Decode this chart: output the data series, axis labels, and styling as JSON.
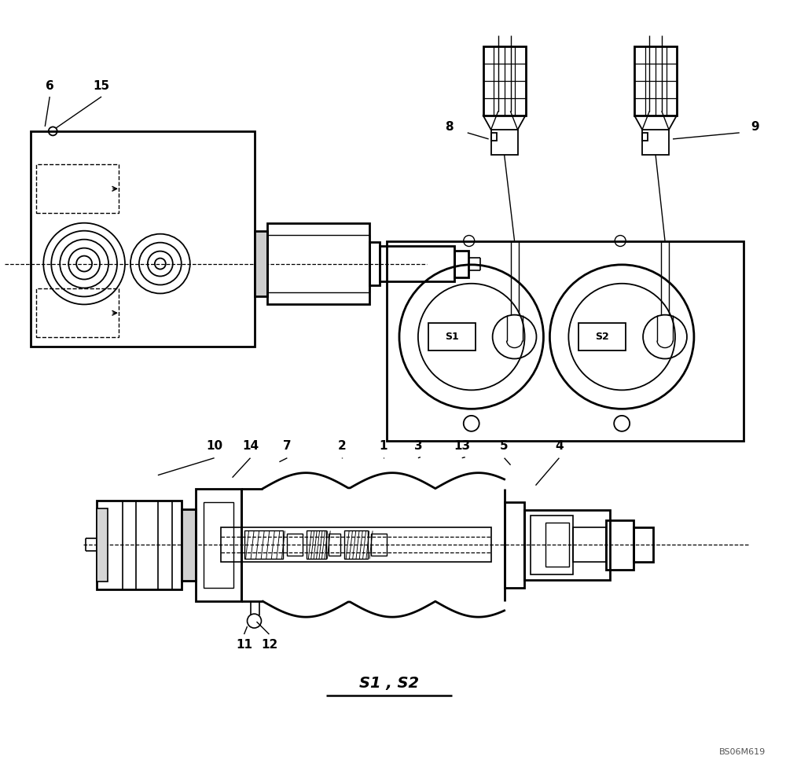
{
  "bg_color": "#ffffff",
  "fig_width": 10.0,
  "fig_height": 9.76,
  "bottom_label": "S1 , S2",
  "watermark": "BS06M619"
}
